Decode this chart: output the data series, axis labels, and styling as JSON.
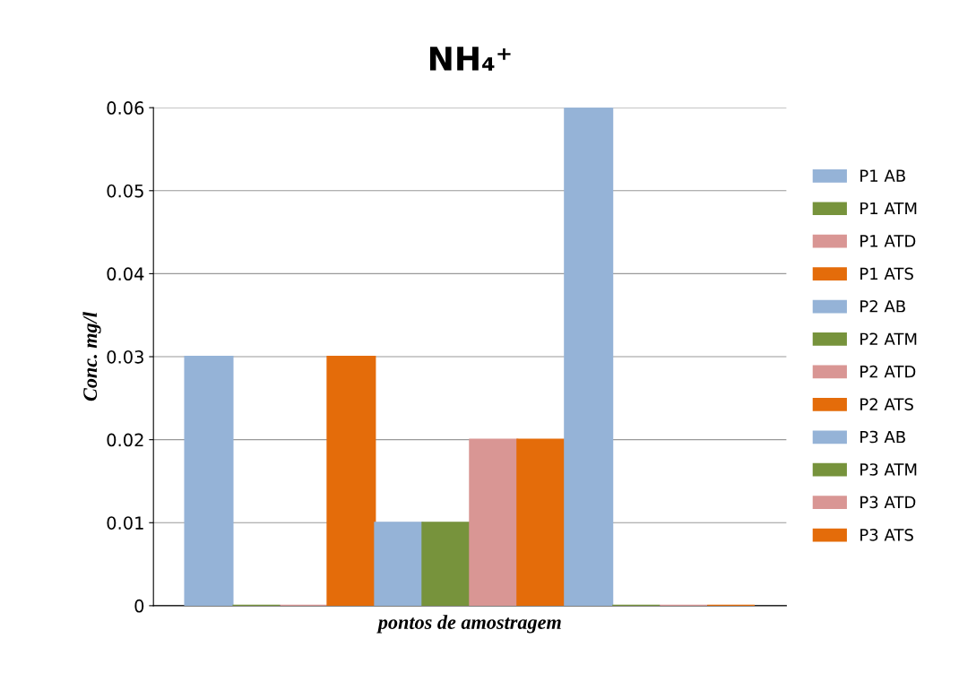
{
  "chart_data": {
    "type": "bar",
    "title": "NH₄⁺",
    "xlabel": "pontos de amostragem",
    "ylabel": "Conc. mg/l",
    "categories": [
      null
    ],
    "series": [
      {
        "name": "P1 AB",
        "color": "#95b3d7",
        "values": [
          0.03
        ]
      },
      {
        "name": "P1 ATM",
        "color": "#77933c",
        "values": [
          0
        ]
      },
      {
        "name": "P1 ATD",
        "color": "#d99694",
        "values": [
          0
        ]
      },
      {
        "name": "P1 ATS",
        "color": "#e46c0a",
        "values": [
          0.03
        ]
      },
      {
        "name": "P2 AB",
        "color": "#95b3d7",
        "values": [
          0.01
        ]
      },
      {
        "name": "P2 ATM",
        "color": "#77933c",
        "values": [
          0.01
        ]
      },
      {
        "name": "P2 ATD",
        "color": "#d99694",
        "values": [
          0.02
        ]
      },
      {
        "name": "P2 ATS",
        "color": "#e46c0a",
        "values": [
          0.02
        ]
      },
      {
        "name": "P3 AB",
        "color": "#95b3d7",
        "values": [
          0.06
        ]
      },
      {
        "name": "P3 ATM",
        "color": "#77933c",
        "values": [
          0
        ]
      },
      {
        "name": "P3 ATD",
        "color": "#d99694",
        "values": [
          0
        ]
      },
      {
        "name": "P3 ATS",
        "color": "#e46c0a",
        "values": [
          0
        ]
      }
    ],
    "ylim": [
      0,
      0.06
    ],
    "yticks": [
      0,
      0.01,
      0.02,
      0.03,
      0.04,
      0.05,
      0.06
    ],
    "grid": "y",
    "legend": "right"
  }
}
